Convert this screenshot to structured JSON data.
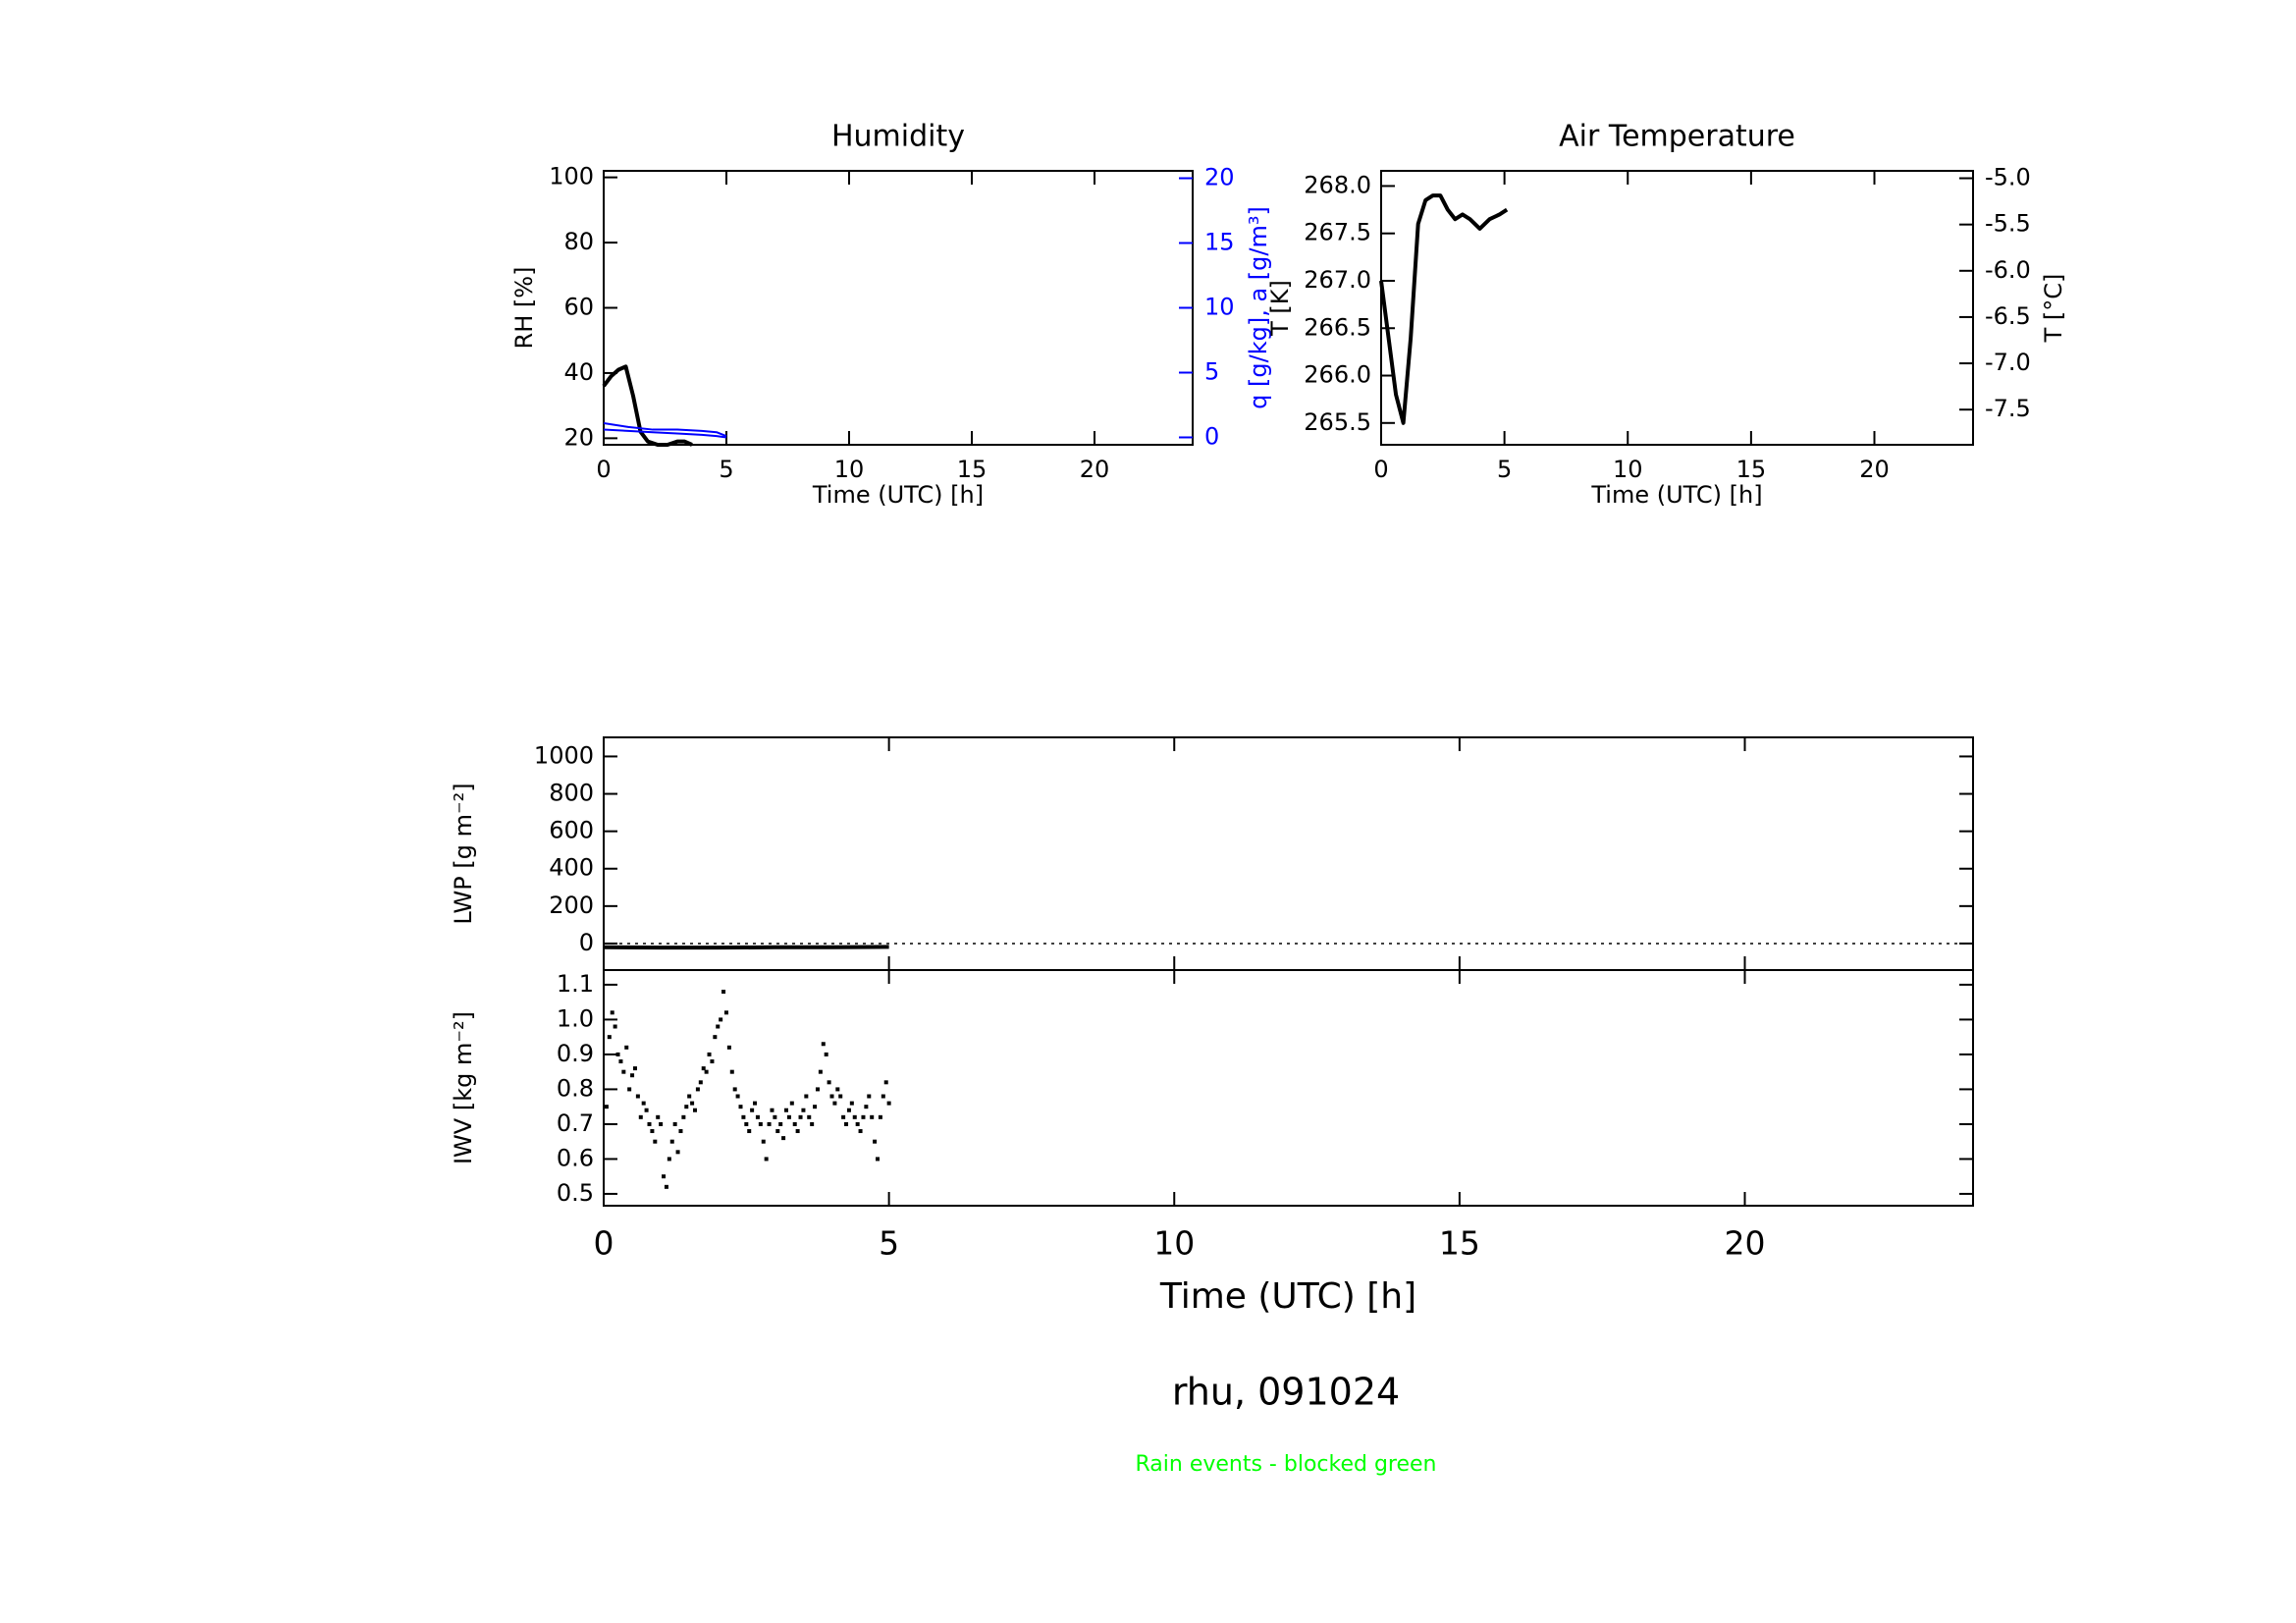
{
  "title": "rhu, 091024",
  "note": "Rain events - blocked green",
  "note_color": "#00ff00",
  "chart_data": [
    {
      "type": "line",
      "title": "Humidity",
      "xlabel": "Time (UTC) [h]",
      "ylabel": "RH [%]",
      "y2label": "q [g/kg], a [g/m³]",
      "y2color": "#0000ff",
      "xlim": [
        0,
        24
      ],
      "xticks": [
        0,
        5,
        10,
        15,
        20
      ],
      "ylim": [
        18,
        102
      ],
      "yticks": [
        20,
        40,
        60,
        80,
        100
      ],
      "y2lim": [
        -0.57,
        20.57
      ],
      "y2ticks": [
        0,
        5,
        10,
        15,
        20
      ],
      "series": [
        {
          "color": "#000000",
          "x": [
            0,
            0.3,
            0.6,
            0.9,
            1.2,
            1.5,
            1.8,
            2.2,
            2.6,
            3.0,
            3.3,
            3.6
          ],
          "values": [
            36,
            39,
            41,
            42,
            33,
            22,
            19,
            18,
            18,
            19,
            19,
            18
          ]
        },
        {
          "color": "#0000ff",
          "axis": "y2",
          "x": [
            0,
            1,
            2,
            3,
            4,
            4.6,
            5
          ],
          "values": [
            1.1,
            0.8,
            0.6,
            0.6,
            0.5,
            0.4,
            0.1
          ]
        },
        {
          "color": "#0000ff",
          "axis": "y2",
          "x": [
            0,
            1,
            2,
            3,
            4,
            4.6,
            5
          ],
          "values": [
            0.6,
            0.5,
            0.4,
            0.3,
            0.2,
            0.1,
            0
          ]
        }
      ]
    },
    {
      "type": "line",
      "title": "Air Temperature",
      "xlabel": "Time (UTC) [h]",
      "ylabel": "T [K]",
      "y2label": "T [°C]",
      "y2color": "#000000",
      "xlim": [
        0,
        24
      ],
      "xticks": [
        0,
        5,
        10,
        15,
        20
      ],
      "ylim": [
        265.27,
        268.16
      ],
      "yticks": [
        265.5,
        {
          "value": 266,
          "label": "266.0"
        },
        266.5,
        {
          "value": 267,
          "label": "267.0"
        },
        267.5,
        {
          "value": 268,
          "label": "268.0"
        }
      ],
      "y2lim": [
        -7.88,
        -4.92
      ],
      "y2ticks": [
        {
          "value": -5,
          "label": "-5.0"
        },
        -5.5,
        {
          "value": -6,
          "label": "-6.0"
        },
        -6.5,
        {
          "value": -7,
          "label": "-7.0"
        },
        -7.5
      ],
      "series": [
        {
          "color": "#000000",
          "x": [
            0,
            0.3,
            0.6,
            0.9,
            1.2,
            1.5,
            1.8,
            2.1,
            2.4,
            2.7,
            3.0,
            3.3,
            3.6,
            4.0,
            4.4,
            4.8,
            5.1
          ],
          "values": [
            267.0,
            266.4,
            265.8,
            265.5,
            266.4,
            267.6,
            267.85,
            267.9,
            267.9,
            267.75,
            267.65,
            267.7,
            267.65,
            267.55,
            267.65,
            267.7,
            267.75
          ]
        }
      ]
    },
    {
      "type": "line",
      "ylabel": "LWP [g m⁻²]",
      "xtick_labels": false,
      "hline": 0,
      "xlim": [
        0,
        24
      ],
      "xticks": [
        0,
        5,
        10,
        15,
        20
      ],
      "ylim": [
        -142,
        1102
      ],
      "yticks": [
        0,
        200,
        400,
        600,
        800,
        1000
      ],
      "series": [
        {
          "color": "#000000",
          "x": [
            0,
            1,
            2,
            3,
            4,
            5
          ],
          "values": [
            -20,
            -22,
            -22,
            -20,
            -20,
            -18
          ]
        }
      ]
    },
    {
      "type": "scatter",
      "ylabel": "IWV [kg m⁻²]",
      "xlabel": "Time (UTC) [h]",
      "color": "#000000",
      "xlim": [
        0,
        24
      ],
      "xticks": [
        0,
        5,
        10,
        15,
        20
      ],
      "ylim": [
        0.466,
        1.142
      ],
      "yticks": [
        0.5,
        0.6,
        0.7,
        0.8,
        0.9,
        {
          "value": 1,
          "label": "1.0"
        },
        1.1
      ],
      "x": [
        0.05,
        0.1,
        0.15,
        0.2,
        0.25,
        0.3,
        0.35,
        0.4,
        0.45,
        0.5,
        0.55,
        0.6,
        0.65,
        0.7,
        0.75,
        0.8,
        0.85,
        0.9,
        0.95,
        1.0,
        1.05,
        1.1,
        1.15,
        1.2,
        1.25,
        1.3,
        1.35,
        1.4,
        1.45,
        1.5,
        1.55,
        1.6,
        1.65,
        1.7,
        1.75,
        1.8,
        1.85,
        1.9,
        1.95,
        2.0,
        2.05,
        2.1,
        2.15,
        2.2,
        2.25,
        2.3,
        2.35,
        2.4,
        2.45,
        2.5,
        2.55,
        2.6,
        2.65,
        2.7,
        2.75,
        2.8,
        2.85,
        2.9,
        2.95,
        3.0,
        3.05,
        3.1,
        3.15,
        3.2,
        3.25,
        3.3,
        3.35,
        3.4,
        3.45,
        3.5,
        3.55,
        3.6,
        3.65,
        3.7,
        3.75,
        3.8,
        3.85,
        3.9,
        3.95,
        4.0,
        4.05,
        4.1,
        4.15,
        4.2,
        4.25,
        4.3,
        4.35,
        4.4,
        4.45,
        4.5,
        4.55,
        4.6,
        4.65,
        4.7,
        4.75,
        4.8,
        4.85,
        4.9,
        4.95,
        5.0
      ],
      "values": [
        0.75,
        0.95,
        1.02,
        0.98,
        0.9,
        0.88,
        0.85,
        0.92,
        0.8,
        0.84,
        0.86,
        0.78,
        0.72,
        0.76,
        0.74,
        0.7,
        0.68,
        0.65,
        0.72,
        0.7,
        0.55,
        0.52,
        0.6,
        0.65,
        0.7,
        0.62,
        0.68,
        0.72,
        0.75,
        0.78,
        0.76,
        0.74,
        0.8,
        0.82,
        0.86,
        0.85,
        0.9,
        0.88,
        0.95,
        0.98,
        1.0,
        1.08,
        1.02,
        0.92,
        0.85,
        0.8,
        0.78,
        0.75,
        0.72,
        0.7,
        0.68,
        0.74,
        0.76,
        0.72,
        0.7,
        0.65,
        0.6,
        0.7,
        0.74,
        0.72,
        0.68,
        0.7,
        0.66,
        0.74,
        0.72,
        0.76,
        0.7,
        0.68,
        0.72,
        0.74,
        0.78,
        0.72,
        0.7,
        0.75,
        0.8,
        0.85,
        0.93,
        0.9,
        0.82,
        0.78,
        0.76,
        0.8,
        0.78,
        0.72,
        0.7,
        0.74,
        0.76,
        0.72,
        0.7,
        0.68,
        0.72,
        0.75,
        0.78,
        0.72,
        0.65,
        0.6,
        0.72,
        0.78,
        0.82,
        0.76
      ]
    }
  ]
}
